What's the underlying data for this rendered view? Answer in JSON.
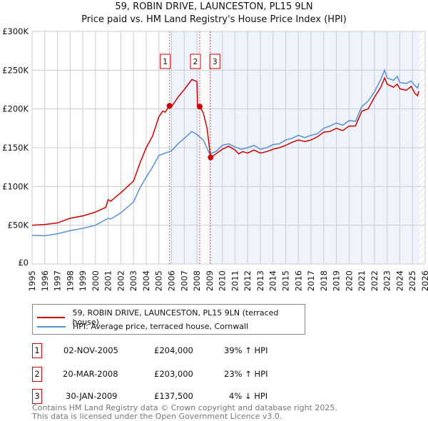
{
  "title": "59, ROBIN DRIVE, LAUNCESTON, PL15 9LN",
  "subtitle": "Price paid vs. HM Land Registry's House Price Index (HPI)",
  "chart_data": {
    "type": "line",
    "title": "59, ROBIN DRIVE, LAUNCESTON, PL15 9LN",
    "subtitle": "Price paid vs. HM Land Registry's House Price Index (HPI)",
    "xlim": [
      1995,
      2026
    ],
    "ylim": [
      0,
      300000
    ],
    "x_ticks": [
      "1995",
      "1996",
      "1997",
      "1998",
      "1999",
      "2000",
      "2001",
      "2002",
      "2003",
      "2004",
      "2005",
      "2006",
      "2007",
      "2008",
      "2009",
      "2010",
      "2011",
      "2012",
      "2013",
      "2014",
      "2015",
      "2016",
      "2017",
      "2018",
      "2019",
      "2020",
      "2021",
      "2022",
      "2023",
      "2024",
      "2025",
      "2026"
    ],
    "y_ticks": [
      {
        "v": 0,
        "l": "£0"
      },
      {
        "v": 50000,
        "l": "£50K"
      },
      {
        "v": 100000,
        "l": "£100K"
      },
      {
        "v": 150000,
        "l": "£150K"
      },
      {
        "v": 200000,
        "l": "£200K"
      },
      {
        "v": 250000,
        "l": "£250K"
      },
      {
        "v": 300000,
        "l": "£300K"
      }
    ],
    "series": [
      {
        "name": "59, ROBIN DRIVE, LAUNCESTON, PL15 9LN (terraced house)",
        "color": "#cc0000",
        "points": [
          [
            1995,
            50
          ],
          [
            1996,
            51
          ],
          [
            1997,
            53
          ],
          [
            1998,
            59
          ],
          [
            1999,
            62
          ],
          [
            2000,
            67
          ],
          [
            2000.8,
            73
          ],
          [
            2001,
            83
          ],
          [
            2001.2,
            81
          ],
          [
            2002,
            92
          ],
          [
            2003,
            107
          ],
          [
            2003.5,
            130
          ],
          [
            2004,
            150
          ],
          [
            2004.5,
            165
          ],
          [
            2005,
            190
          ],
          [
            2005.3,
            197
          ],
          [
            2005.5,
            196
          ],
          [
            2005.84,
            204
          ],
          [
            2006,
            203
          ],
          [
            2006.5,
            215
          ],
          [
            2007,
            225
          ],
          [
            2007.6,
            238
          ],
          [
            2007.9,
            236
          ],
          [
            2008.0,
            235
          ],
          [
            2008.05,
            204
          ],
          [
            2008.22,
            203
          ],
          [
            2008.5,
            195
          ],
          [
            2008.8,
            175
          ],
          [
            2009.08,
            137.5
          ],
          [
            2009.5,
            142
          ],
          [
            2010,
            148
          ],
          [
            2010.5,
            152
          ],
          [
            2011,
            147
          ],
          [
            2011.3,
            142
          ],
          [
            2011.6,
            145
          ],
          [
            2012,
            143
          ],
          [
            2012.5,
            147
          ],
          [
            2013,
            143
          ],
          [
            2013.5,
            145
          ],
          [
            2014,
            148
          ],
          [
            2014.5,
            150
          ],
          [
            2015,
            153
          ],
          [
            2015.5,
            157
          ],
          [
            2016,
            160
          ],
          [
            2016.5,
            158
          ],
          [
            2017,
            160
          ],
          [
            2017.5,
            164
          ],
          [
            2018,
            170
          ],
          [
            2018.5,
            171
          ],
          [
            2019,
            175
          ],
          [
            2019.5,
            172
          ],
          [
            2020,
            178
          ],
          [
            2020.5,
            178
          ],
          [
            2021,
            197
          ],
          [
            2021.5,
            200
          ],
          [
            2022,
            215
          ],
          [
            2022.5,
            228
          ],
          [
            2022.8,
            240
          ],
          [
            2023,
            232
          ],
          [
            2023.5,
            228
          ],
          [
            2023.8,
            232
          ],
          [
            2024,
            226
          ],
          [
            2024.5,
            224
          ],
          [
            2024.9,
            229
          ],
          [
            2025.2,
            220
          ],
          [
            2025.4,
            217
          ],
          [
            2025.5,
            223
          ]
        ]
      },
      {
        "name": "HPI: Average price, terraced house, Cornwall",
        "color": "#5b8fd4",
        "points": [
          [
            1995,
            37
          ],
          [
            1996,
            36.5
          ],
          [
            1997,
            39
          ],
          [
            1998,
            43
          ],
          [
            1999,
            46
          ],
          [
            2000,
            50
          ],
          [
            2001,
            59
          ],
          [
            2001.2,
            58
          ],
          [
            2002,
            66
          ],
          [
            2003,
            80
          ],
          [
            2003.5,
            98
          ],
          [
            2004,
            112
          ],
          [
            2004.5,
            125
          ],
          [
            2005,
            140
          ],
          [
            2005.5,
            143
          ],
          [
            2006,
            146
          ],
          [
            2006.5,
            155
          ],
          [
            2007,
            162
          ],
          [
            2007.6,
            171
          ],
          [
            2008,
            167
          ],
          [
            2008.5,
            160
          ],
          [
            2009,
            142
          ],
          [
            2009.5,
            145
          ],
          [
            2010,
            153
          ],
          [
            2010.5,
            155
          ],
          [
            2011,
            151
          ],
          [
            2011.5,
            148
          ],
          [
            2012,
            150
          ],
          [
            2012.5,
            153
          ],
          [
            2013,
            148
          ],
          [
            2013.5,
            150
          ],
          [
            2014,
            154
          ],
          [
            2014.5,
            155
          ],
          [
            2015,
            160
          ],
          [
            2015.5,
            162
          ],
          [
            2016,
            166
          ],
          [
            2016.5,
            163
          ],
          [
            2017,
            166
          ],
          [
            2017.5,
            168
          ],
          [
            2018,
            175
          ],
          [
            2018.5,
            178
          ],
          [
            2019,
            182
          ],
          [
            2019.5,
            179
          ],
          [
            2020,
            185
          ],
          [
            2020.5,
            184
          ],
          [
            2021,
            203
          ],
          [
            2021.5,
            210
          ],
          [
            2022,
            222
          ],
          [
            2022.5,
            238
          ],
          [
            2022.8,
            250
          ],
          [
            2023,
            240
          ],
          [
            2023.5,
            237
          ],
          [
            2023.8,
            242
          ],
          [
            2024,
            234
          ],
          [
            2024.5,
            233
          ],
          [
            2024.9,
            236
          ],
          [
            2025.2,
            230
          ],
          [
            2025.4,
            227
          ],
          [
            2025.5,
            233
          ]
        ]
      }
    ],
    "sales": [
      {
        "n": "1",
        "x": 2005.84,
        "y": 204000
      },
      {
        "n": "2",
        "x": 2008.22,
        "y": 203000
      },
      {
        "n": "3",
        "x": 2009.08,
        "y": 137500
      }
    ],
    "forecast_start": 2025.55
  },
  "legend": {
    "items": [
      "59, ROBIN DRIVE, LAUNCESTON, PL15 9LN (terraced house)",
      "HPI: Average price, terraced house, Cornwall"
    ]
  },
  "transactions": [
    {
      "n": "1",
      "date": "02-NOV-2005",
      "price": "£204,000",
      "hpi": "39% ↑ HPI"
    },
    {
      "n": "2",
      "date": "20-MAR-2008",
      "price": "£203,000",
      "hpi": "23% ↑ HPI"
    },
    {
      "n": "3",
      "date": "30-JAN-2009",
      "price": "£137,500",
      "hpi": "4% ↓ HPI"
    }
  ],
  "footer": [
    "Contains HM Land Registry data © Crown copyright and database right 2025.",
    "This data is licensed under the Open Government Licence v3.0."
  ]
}
